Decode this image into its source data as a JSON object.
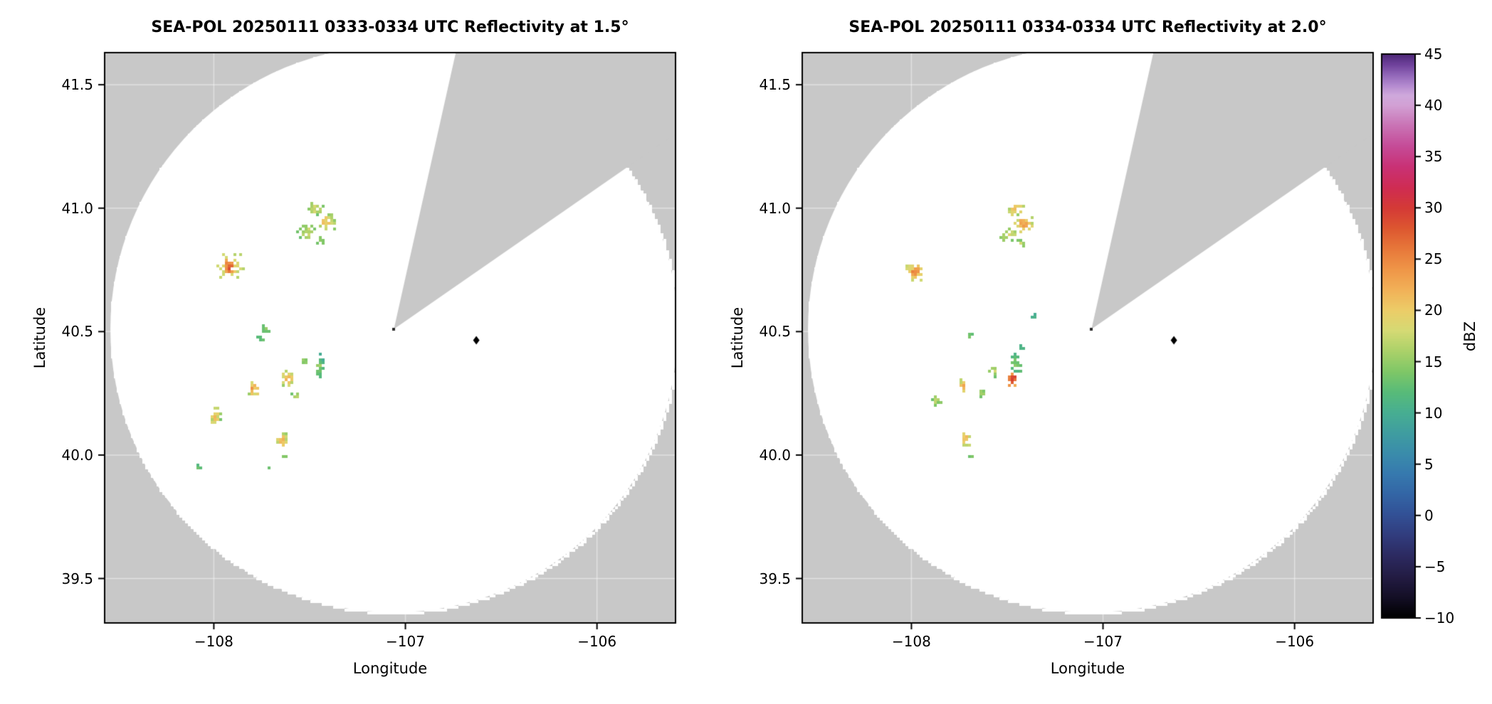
{
  "figure": {
    "background": "#ffffff",
    "nodata_color": "#c8c8c8",
    "scan_area_color": "#ffffff",
    "frame_color": "#000000",
    "grid_color": "rgba(255,255,255,0.45)",
    "text_color": "#000000"
  },
  "chart_data": [
    {
      "type": "heatmap",
      "title": "SEA-POL 20250111 0333-0334 UTC Reflectivity at 1.5°",
      "xlabel": "Longitude",
      "ylabel": "Latitude",
      "xlim": [
        -108.57,
        -105.59
      ],
      "ylim": [
        39.32,
        41.63
      ],
      "xticks": {
        "values": [
          -108,
          -107,
          -106
        ],
        "labels": [
          "−108",
          "−107",
          "−106"
        ]
      },
      "yticks": {
        "values": [
          39.5,
          40.0,
          40.5,
          41.0,
          41.5
        ],
        "labels": [
          "39.5",
          "40.0",
          "40.5",
          "41.0",
          "41.5"
        ]
      },
      "radar": {
        "center_lon": -107.06,
        "center_lat": 40.51,
        "range_deg_lon": 1.48,
        "blocked_sector_azimuth_deg": [
          12.6,
          55.2
        ]
      },
      "site_marker": {
        "lon": -106.63,
        "lat": 40.465,
        "shape": "diamond",
        "color": "#000000"
      },
      "echo_format": [
        "lon",
        "lat",
        "radius_lon_deg",
        "radius_lat_deg",
        "n_gates",
        "dbz_min",
        "dbz_max"
      ],
      "echoes": [
        [
          -107.48,
          41.005,
          0.05,
          0.03,
          26,
          12,
          20
        ],
        [
          -107.42,
          40.95,
          0.055,
          0.038,
          32,
          13,
          23
        ],
        [
          -107.52,
          40.91,
          0.048,
          0.032,
          24,
          12,
          19
        ],
        [
          -107.45,
          40.872,
          0.028,
          0.018,
          9,
          12,
          16
        ],
        [
          -107.92,
          40.775,
          0.075,
          0.052,
          42,
          15,
          22
        ],
        [
          -107.925,
          40.77,
          0.034,
          0.028,
          22,
          21,
          30
        ],
        [
          -107.74,
          40.515,
          0.024,
          0.024,
          9,
          11,
          16
        ],
        [
          -107.76,
          40.478,
          0.014,
          0.013,
          4,
          11,
          14
        ],
        [
          -107.455,
          40.36,
          0.018,
          0.055,
          24,
          9,
          17
        ],
        [
          -107.54,
          40.385,
          0.028,
          0.018,
          10,
          12,
          17
        ],
        [
          -107.62,
          40.315,
          0.034,
          0.03,
          20,
          15,
          26
        ],
        [
          -107.575,
          40.245,
          0.03,
          0.014,
          7,
          12,
          17
        ],
        [
          -107.8,
          40.27,
          0.03,
          0.028,
          16,
          15,
          26
        ],
        [
          -108.0,
          40.165,
          0.03,
          0.04,
          18,
          13,
          23
        ],
        [
          -107.65,
          40.065,
          0.04,
          0.034,
          24,
          13,
          24
        ],
        [
          -107.64,
          40.0,
          0.018,
          0.013,
          5,
          12,
          16
        ],
        [
          -108.08,
          39.958,
          0.014,
          0.011,
          4,
          11,
          15
        ],
        [
          -107.72,
          39.948,
          0.012,
          0.01,
          3,
          11,
          14
        ]
      ]
    },
    {
      "type": "heatmap",
      "title": "SEA-POL 20250111 0334-0334 UTC Reflectivity at 2.0°",
      "xlabel": "Longitude",
      "ylabel": "Latitude",
      "xlim": [
        -108.57,
        -105.59
      ],
      "ylim": [
        39.32,
        41.63
      ],
      "xticks": {
        "values": [
          -108,
          -107,
          -106
        ],
        "labels": [
          "−108",
          "−107",
          "−106"
        ]
      },
      "yticks": {
        "values": [
          39.5,
          40.0,
          40.5,
          41.0,
          41.5
        ],
        "labels": [
          "39.5",
          "40.0",
          "40.5",
          "41.0",
          "41.5"
        ]
      },
      "radar": {
        "center_lon": -107.06,
        "center_lat": 40.51,
        "range_deg_lon": 1.48,
        "blocked_sector_azimuth_deg": [
          12.6,
          55.2
        ]
      },
      "site_marker": {
        "lon": -106.63,
        "lat": 40.465,
        "shape": "diamond",
        "color": "#000000"
      },
      "echo_format": [
        "lon",
        "lat",
        "radius_lon_deg",
        "radius_lat_deg",
        "n_gates",
        "dbz_min",
        "dbz_max"
      ],
      "echoes": [
        [
          -107.46,
          41.0,
          0.045,
          0.028,
          22,
          14,
          23
        ],
        [
          -107.42,
          40.942,
          0.05,
          0.038,
          30,
          15,
          25
        ],
        [
          -107.5,
          40.898,
          0.045,
          0.028,
          20,
          13,
          20
        ],
        [
          -107.44,
          40.868,
          0.024,
          0.014,
          7,
          13,
          18
        ],
        [
          -107.99,
          40.75,
          0.055,
          0.045,
          34,
          15,
          24
        ],
        [
          -107.99,
          40.745,
          0.024,
          0.02,
          12,
          20,
          27
        ],
        [
          -107.37,
          40.565,
          0.022,
          0.008,
          5,
          9,
          12
        ],
        [
          -107.7,
          40.49,
          0.014,
          0.013,
          4,
          11,
          15
        ],
        [
          -107.46,
          40.372,
          0.028,
          0.05,
          30,
          9,
          16
        ],
        [
          -107.48,
          40.315,
          0.024,
          0.03,
          18,
          21,
          31
        ],
        [
          -107.575,
          40.345,
          0.028,
          0.024,
          14,
          12,
          18
        ],
        [
          -107.64,
          40.26,
          0.03,
          0.018,
          8,
          12,
          17
        ],
        [
          -107.43,
          40.44,
          0.01,
          0.008,
          3,
          9,
          12
        ],
        [
          -107.735,
          40.285,
          0.025,
          0.024,
          13,
          16,
          26
        ],
        [
          -107.875,
          40.23,
          0.03,
          0.024,
          12,
          12,
          18
        ],
        [
          -107.73,
          40.065,
          0.034,
          0.03,
          20,
          14,
          25
        ],
        [
          -107.7,
          40.0,
          0.014,
          0.012,
          4,
          12,
          15
        ]
      ]
    }
  ],
  "colorbar": {
    "label": "dBZ",
    "vmin": -10,
    "vmax": 45,
    "ticks": {
      "values": [
        45,
        40,
        35,
        30,
        25,
        20,
        15,
        10,
        5,
        0,
        -5,
        -10
      ],
      "labels": [
        "45",
        "40",
        "35",
        "30",
        "25",
        "20",
        "15",
        "10",
        "5",
        "0",
        "−5",
        "−10"
      ]
    },
    "stops": [
      [
        -10,
        "#000000"
      ],
      [
        -8,
        "#140f26"
      ],
      [
        -6,
        "#231c44"
      ],
      [
        -4,
        "#2c2a60"
      ],
      [
        -2,
        "#313c7d"
      ],
      [
        0,
        "#325095"
      ],
      [
        2,
        "#3365a5"
      ],
      [
        4,
        "#3679ae"
      ],
      [
        6,
        "#3a8cab"
      ],
      [
        8,
        "#3f9da0"
      ],
      [
        10,
        "#47ae92"
      ],
      [
        12,
        "#58bb79"
      ],
      [
        14,
        "#7fc767"
      ],
      [
        16,
        "#abd169"
      ],
      [
        18,
        "#d5da74"
      ],
      [
        20,
        "#eccd68"
      ],
      [
        22,
        "#f1b158"
      ],
      [
        24,
        "#ef9648"
      ],
      [
        26,
        "#e7783a"
      ],
      [
        28,
        "#dd5730"
      ],
      [
        30,
        "#d43a36"
      ],
      [
        32,
        "#cf2c53"
      ],
      [
        34,
        "#c93175"
      ],
      [
        36,
        "#c54b97"
      ],
      [
        38,
        "#c972b4"
      ],
      [
        40,
        "#d2a0d4"
      ],
      [
        41,
        "#cfa9dc"
      ],
      [
        42,
        "#b289cf"
      ],
      [
        43,
        "#9166b8"
      ],
      [
        44,
        "#6f429c"
      ],
      [
        45,
        "#4e2877"
      ]
    ]
  }
}
